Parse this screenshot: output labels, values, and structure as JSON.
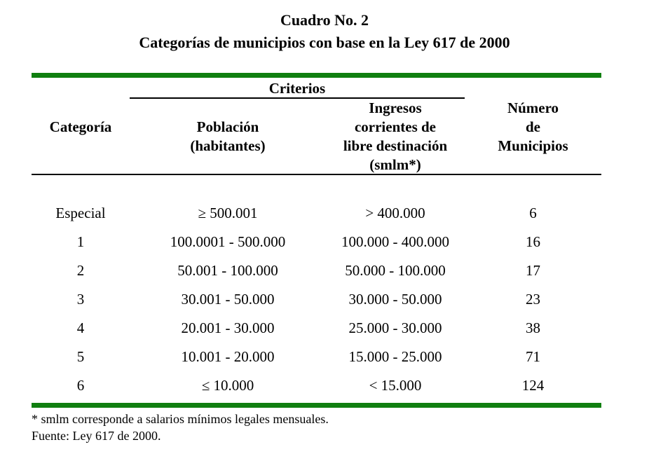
{
  "document": {
    "title": "Cuadro No. 2",
    "subtitle": "Categorías de municipios con base en la Ley 617 de 2000"
  },
  "table": {
    "group_header": "Criterios",
    "columns": {
      "categoria": "Categoría",
      "poblacion": "Población\n(habitantes)",
      "ingresos": "Ingresos\ncorrientes de\nlibre destinación\n(smlm*)",
      "numero": "Número\nde\nMunicipios"
    },
    "rows": [
      {
        "categoria": "Especial",
        "poblacion": "≥ 500.001",
        "ingresos": "> 400.000",
        "numero": "6"
      },
      {
        "categoria": "1",
        "poblacion": "100.0001 - 500.000",
        "ingresos": "100.000 - 400.000",
        "numero": "16"
      },
      {
        "categoria": "2",
        "poblacion": "50.001 - 100.000",
        "ingresos": "50.000 - 100.000",
        "numero": "17"
      },
      {
        "categoria": "3",
        "poblacion": "30.001 - 50.000",
        "ingresos": "30.000 - 50.000",
        "numero": "23"
      },
      {
        "categoria": "4",
        "poblacion": "20.001 - 30.000",
        "ingresos": "25.000 - 30.000",
        "numero": "38"
      },
      {
        "categoria": "5",
        "poblacion": "10.001 - 20.000",
        "ingresos": "15.000 - 25.000",
        "numero": "71"
      },
      {
        "categoria": "6",
        "poblacion": "≤ 10.000",
        "ingresos": "< 15.000",
        "numero": "124"
      }
    ]
  },
  "footnotes": {
    "smlm_note": "* smlm corresponde a salarios mínimos legales mensuales.",
    "source": "Fuente: Ley 617 de 2000."
  },
  "colors": {
    "rule_green": "#107f10",
    "rule_black": "#000000",
    "text": "#000000",
    "background": "#ffffff"
  }
}
